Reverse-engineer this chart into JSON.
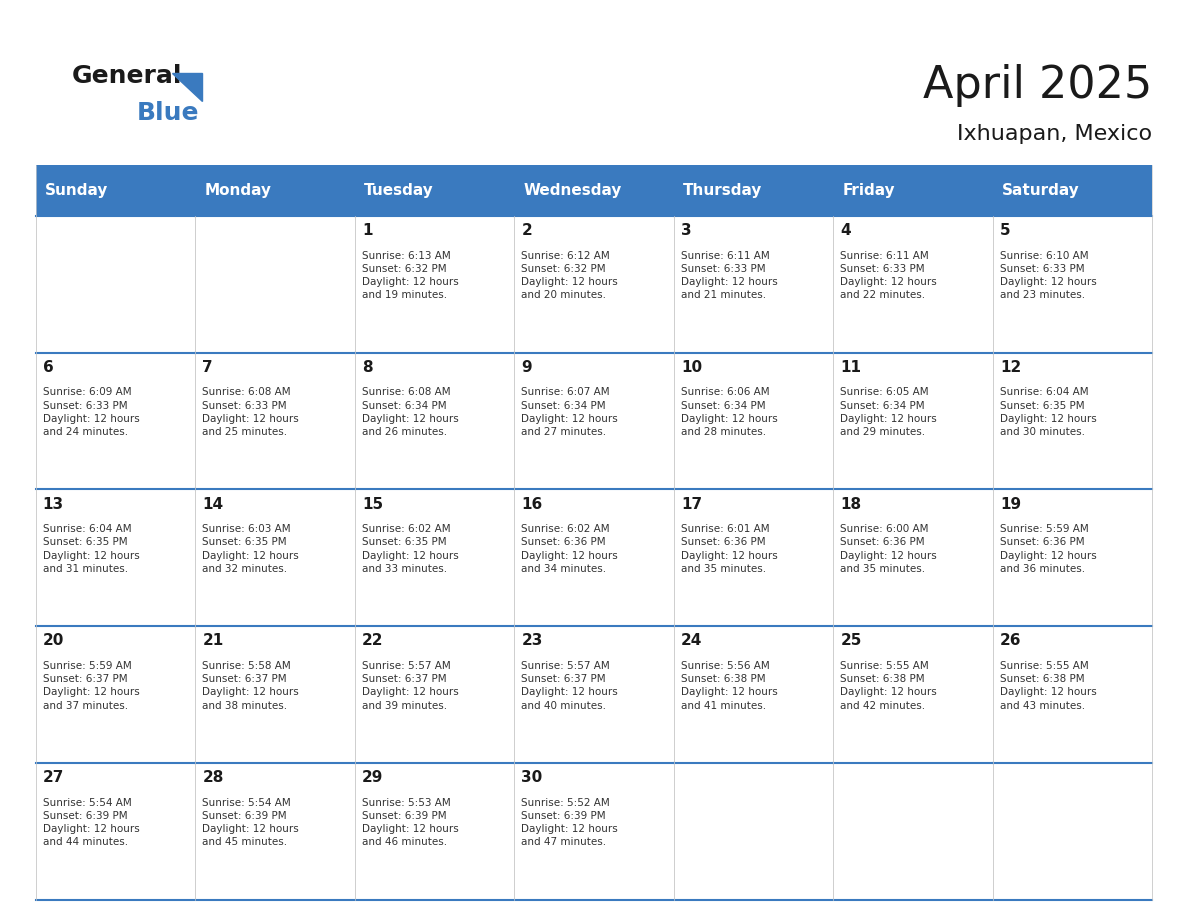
{
  "title": "April 2025",
  "subtitle": "Ixhuapan, Mexico",
  "header_bg_color": "#3a7abf",
  "header_text_color": "#ffffff",
  "cell_bg_color": "#ffffff",
  "alt_cell_bg_color": "#f0f0f0",
  "border_color": "#3a7abf",
  "day_names": [
    "Sunday",
    "Monday",
    "Tuesday",
    "Wednesday",
    "Thursday",
    "Friday",
    "Saturday"
  ],
  "weeks": [
    [
      {
        "day": 0,
        "info": ""
      },
      {
        "day": 0,
        "info": ""
      },
      {
        "day": 1,
        "sunrise": "6:13 AM",
        "sunset": "6:32 PM",
        "daylight_hours": 12,
        "daylight_minutes": 19
      },
      {
        "day": 2,
        "sunrise": "6:12 AM",
        "sunset": "6:32 PM",
        "daylight_hours": 12,
        "daylight_minutes": 20
      },
      {
        "day": 3,
        "sunrise": "6:11 AM",
        "sunset": "6:33 PM",
        "daylight_hours": 12,
        "daylight_minutes": 21
      },
      {
        "day": 4,
        "sunrise": "6:11 AM",
        "sunset": "6:33 PM",
        "daylight_hours": 12,
        "daylight_minutes": 22
      },
      {
        "day": 5,
        "sunrise": "6:10 AM",
        "sunset": "6:33 PM",
        "daylight_hours": 12,
        "daylight_minutes": 23
      }
    ],
    [
      {
        "day": 6,
        "sunrise": "6:09 AM",
        "sunset": "6:33 PM",
        "daylight_hours": 12,
        "daylight_minutes": 24
      },
      {
        "day": 7,
        "sunrise": "6:08 AM",
        "sunset": "6:33 PM",
        "daylight_hours": 12,
        "daylight_minutes": 25
      },
      {
        "day": 8,
        "sunrise": "6:08 AM",
        "sunset": "6:34 PM",
        "daylight_hours": 12,
        "daylight_minutes": 26
      },
      {
        "day": 9,
        "sunrise": "6:07 AM",
        "sunset": "6:34 PM",
        "daylight_hours": 12,
        "daylight_minutes": 27
      },
      {
        "day": 10,
        "sunrise": "6:06 AM",
        "sunset": "6:34 PM",
        "daylight_hours": 12,
        "daylight_minutes": 28
      },
      {
        "day": 11,
        "sunrise": "6:05 AM",
        "sunset": "6:34 PM",
        "daylight_hours": 12,
        "daylight_minutes": 29
      },
      {
        "day": 12,
        "sunrise": "6:04 AM",
        "sunset": "6:35 PM",
        "daylight_hours": 12,
        "daylight_minutes": 30
      }
    ],
    [
      {
        "day": 13,
        "sunrise": "6:04 AM",
        "sunset": "6:35 PM",
        "daylight_hours": 12,
        "daylight_minutes": 31
      },
      {
        "day": 14,
        "sunrise": "6:03 AM",
        "sunset": "6:35 PM",
        "daylight_hours": 12,
        "daylight_minutes": 32
      },
      {
        "day": 15,
        "sunrise": "6:02 AM",
        "sunset": "6:35 PM",
        "daylight_hours": 12,
        "daylight_minutes": 33
      },
      {
        "day": 16,
        "sunrise": "6:02 AM",
        "sunset": "6:36 PM",
        "daylight_hours": 12,
        "daylight_minutes": 34
      },
      {
        "day": 17,
        "sunrise": "6:01 AM",
        "sunset": "6:36 PM",
        "daylight_hours": 12,
        "daylight_minutes": 35
      },
      {
        "day": 18,
        "sunrise": "6:00 AM",
        "sunset": "6:36 PM",
        "daylight_hours": 12,
        "daylight_minutes": 35
      },
      {
        "day": 19,
        "sunrise": "5:59 AM",
        "sunset": "6:36 PM",
        "daylight_hours": 12,
        "daylight_minutes": 36
      }
    ],
    [
      {
        "day": 20,
        "sunrise": "5:59 AM",
        "sunset": "6:37 PM",
        "daylight_hours": 12,
        "daylight_minutes": 37
      },
      {
        "day": 21,
        "sunrise": "5:58 AM",
        "sunset": "6:37 PM",
        "daylight_hours": 12,
        "daylight_minutes": 38
      },
      {
        "day": 22,
        "sunrise": "5:57 AM",
        "sunset": "6:37 PM",
        "daylight_hours": 12,
        "daylight_minutes": 39
      },
      {
        "day": 23,
        "sunrise": "5:57 AM",
        "sunset": "6:37 PM",
        "daylight_hours": 12,
        "daylight_minutes": 40
      },
      {
        "day": 24,
        "sunrise": "5:56 AM",
        "sunset": "6:38 PM",
        "daylight_hours": 12,
        "daylight_minutes": 41
      },
      {
        "day": 25,
        "sunrise": "5:55 AM",
        "sunset": "6:38 PM",
        "daylight_hours": 12,
        "daylight_minutes": 42
      },
      {
        "day": 26,
        "sunrise": "5:55 AM",
        "sunset": "6:38 PM",
        "daylight_hours": 12,
        "daylight_minutes": 43
      }
    ],
    [
      {
        "day": 27,
        "sunrise": "5:54 AM",
        "sunset": "6:39 PM",
        "daylight_hours": 12,
        "daylight_minutes": 44
      },
      {
        "day": 28,
        "sunrise": "5:54 AM",
        "sunset": "6:39 PM",
        "daylight_hours": 12,
        "daylight_minutes": 45
      },
      {
        "day": 29,
        "sunrise": "5:53 AM",
        "sunset": "6:39 PM",
        "daylight_hours": 12,
        "daylight_minutes": 46
      },
      {
        "day": 30,
        "sunrise": "5:52 AM",
        "sunset": "6:39 PM",
        "daylight_hours": 12,
        "daylight_minutes": 47
      },
      {
        "day": 0,
        "info": ""
      },
      {
        "day": 0,
        "info": ""
      },
      {
        "day": 0,
        "info": ""
      }
    ]
  ],
  "logo_text_general": "General",
  "logo_text_blue": "Blue",
  "logo_color_general": "#1a1a1a",
  "logo_color_blue": "#3a7abf",
  "logo_triangle_color": "#3a7abf"
}
